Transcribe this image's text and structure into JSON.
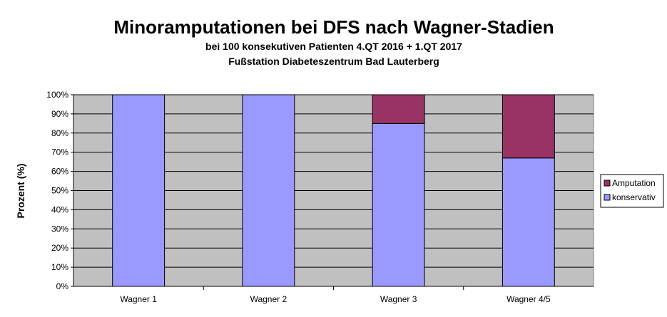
{
  "chart_data": {
    "type": "bar",
    "stacked": true,
    "title": "Minoramputationen bei DFS nach Wagner-Stadien",
    "subtitle": [
      "bei 100 konsekutiven Patienten 4.QT 2016 + 1.QT 2017",
      "Fußstation Diabeteszentrum Bad Lauterberg"
    ],
    "xlabel": "",
    "ylabel": "Prozent (%)",
    "ylim": [
      0,
      100
    ],
    "yticks": [
      "0%",
      "10%",
      "20%",
      "30%",
      "40%",
      "50%",
      "60%",
      "70%",
      "80%",
      "90%",
      "100%"
    ],
    "categories": [
      "Wagner 1",
      "Wagner 2",
      "Wagner 3",
      "Wagner 4/5"
    ],
    "series": [
      {
        "name": "konservativ",
        "values": [
          100,
          100,
          85,
          67
        ],
        "color": "#9999ff"
      },
      {
        "name": "Amputation",
        "values": [
          0,
          0,
          15,
          33
        ],
        "color": "#993366"
      }
    ],
    "legend_order": [
      "Amputation",
      "konservativ"
    ],
    "legend_position": "right",
    "grid": true,
    "plot_background": "#c0c0c0"
  }
}
